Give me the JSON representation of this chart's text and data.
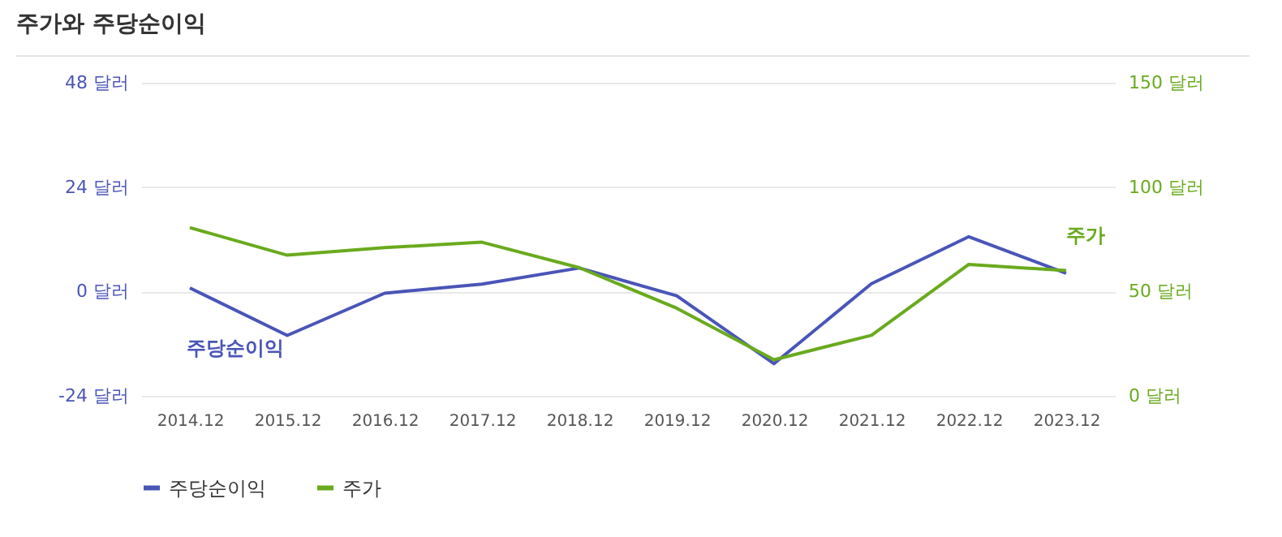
{
  "chart_data": {
    "type": "line",
    "title": "주가와 주당순이익",
    "categories": [
      "2014.12",
      "2015.12",
      "2016.12",
      "2017.12",
      "2018.12",
      "2019.12",
      "2020.12",
      "2021.12",
      "2022.12",
      "2023.12"
    ],
    "series": [
      {
        "name": "주당순이익",
        "color": "#4a55b8",
        "values": [
          0.8,
          -10.1,
          -0.4,
          1.7,
          5.4,
          -1.0,
          -16.6,
          1.8,
          12.6,
          4.2
        ]
      },
      {
        "name": "주가",
        "color": "#6aaa1e",
        "axis": "y2",
        "values": [
          80.6,
          67.4,
          71,
          73.6,
          61.4,
          42,
          17.3,
          29,
          63,
          60
        ]
      }
    ],
    "ylim": [
      -24,
      48
    ],
    "yticks": [
      {
        "value": -24,
        "label": "-24 달러"
      },
      {
        "value": 0,
        "label": "0 달러"
      },
      {
        "value": 24,
        "label": "24 달러"
      },
      {
        "value": 48,
        "label": "48 달러"
      }
    ],
    "y2lim": [
      0,
      150
    ],
    "y2ticks": [
      {
        "value": 0,
        "label": "0 달러"
      },
      {
        "value": 50,
        "label": "50 달러"
      },
      {
        "value": 100,
        "label": "100 달러"
      },
      {
        "value": 150,
        "label": "150 달러"
      }
    ],
    "grid": "y",
    "legend": "bottom",
    "marker": "none",
    "line_style": "solid"
  }
}
